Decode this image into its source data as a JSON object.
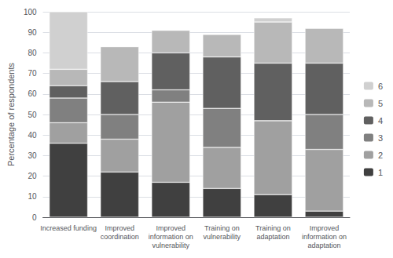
{
  "chart_data": {
    "type": "bar",
    "stacked": true,
    "grid": true,
    "legend": "right",
    "categories": [
      "Increased funding",
      "Improved\ncoordination",
      "Improved\ninformation on\nvulnerability",
      "Training on\nvulnerability",
      "Training on\nadaptation",
      "Improved\ninformation on\nadaptation"
    ],
    "ylabel": "Percentage of respondents",
    "ylim": [
      0,
      100
    ],
    "yticks": [
      0,
      10,
      20,
      30,
      40,
      50,
      60,
      70,
      80,
      90,
      100
    ],
    "series": [
      {
        "name": "1",
        "color": "#404040",
        "values": [
          36,
          22,
          17,
          14,
          11,
          3
        ]
      },
      {
        "name": "2",
        "color": "#a0a0a0",
        "values": [
          10,
          16,
          39,
          20,
          36,
          30
        ]
      },
      {
        "name": "3",
        "color": "#808080",
        "values": [
          12,
          12,
          6,
          19,
          0,
          17
        ]
      },
      {
        "name": "4",
        "color": "#606060",
        "values": [
          6,
          16,
          18,
          25,
          28,
          25
        ]
      },
      {
        "name": "5",
        "color": "#b8b8b8",
        "values": [
          8,
          17,
          11,
          11,
          20,
          17
        ]
      },
      {
        "name": "6",
        "color": "#d0d0d0",
        "values": [
          28,
          0,
          0,
          0,
          2,
          0
        ]
      }
    ]
  }
}
